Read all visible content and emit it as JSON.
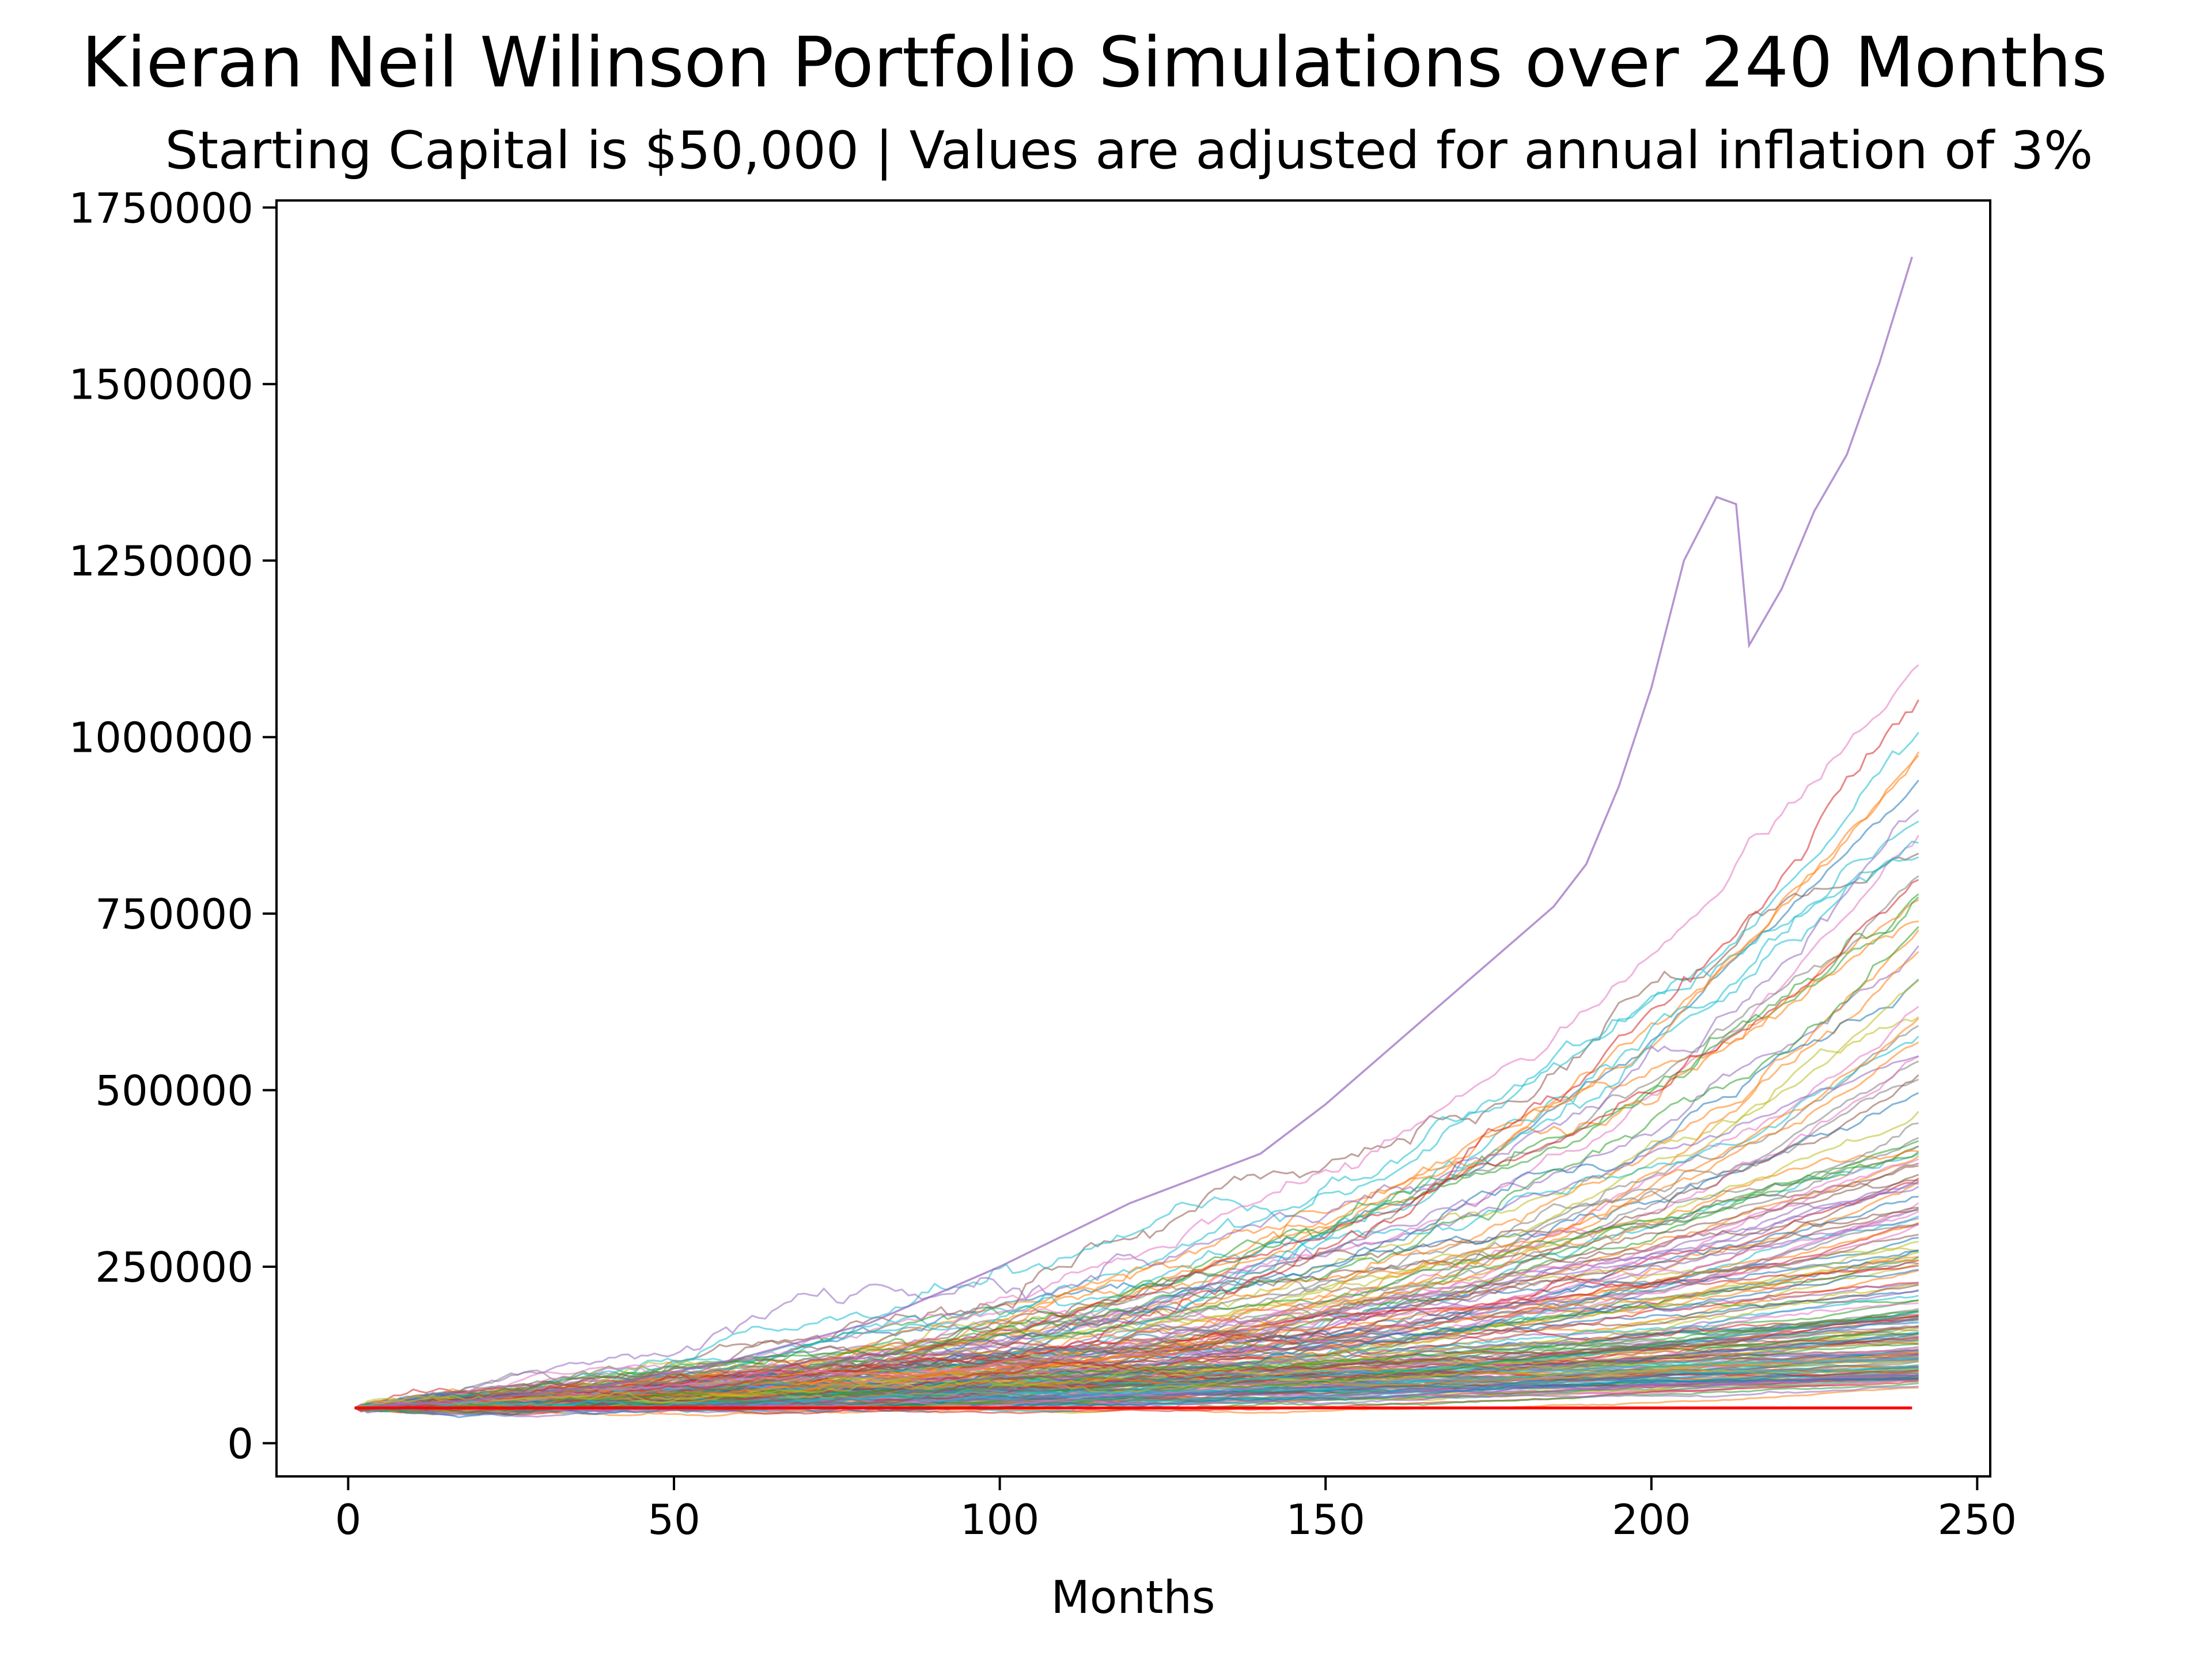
{
  "chart_data": {
    "type": "line",
    "title": "Kieran Neil Wilinson Portfolio Simulations over 240 Months",
    "subtitle": "Starting Capital is $50,000 | Values are adjusted for annual inflation of 3%",
    "xlabel": "Months",
    "ylabel": "",
    "xlim": [
      -11,
      252
    ],
    "ylim": [
      -47000,
      1760000
    ],
    "xticks": [
      0,
      50,
      100,
      150,
      200,
      250
    ],
    "xtick_labels": [
      "0",
      "50",
      "100",
      "150",
      "200",
      "250"
    ],
    "yticks": [
      0,
      250000,
      500000,
      750000,
      1000000,
      1250000,
      1500000,
      1750000
    ],
    "ytick_labels": [
      "0",
      "250000",
      "500000",
      "750000",
      "1000000",
      "1250000",
      "1500000",
      "1750000"
    ],
    "grid": false,
    "legend": "none",
    "months": 241,
    "starting_capital": 50000,
    "simulation_count": 200,
    "simulation_end_range": [
      95000,
      1680000
    ],
    "series_colors": [
      "#1f77b4",
      "#ff7f0e",
      "#2ca02c",
      "#d62728",
      "#9467bd",
      "#8c564b",
      "#e377c2",
      "#7f7f7f",
      "#bcbd22",
      "#17becf"
    ],
    "series": [
      {
        "role": "top-path",
        "color": "#9467bd",
        "x": [
          1,
          20,
          40,
          60,
          80,
          100,
          120,
          140,
          150,
          160,
          170,
          180,
          185,
          190,
          195,
          200,
          205,
          210,
          213,
          215,
          220,
          225,
          230,
          235,
          240
        ],
        "y": [
          50000,
          62000,
          82000,
          120000,
          170000,
          250000,
          340000,
          410000,
          480000,
          560000,
          640000,
          720000,
          760000,
          820000,
          930000,
          1070000,
          1250000,
          1340000,
          1330000,
          1130000,
          1210000,
          1320000,
          1400000,
          1530000,
          1680000
        ]
      },
      {
        "role": "baseline",
        "color": "#ff0000",
        "x": [
          1,
          240
        ],
        "y": [
          50000,
          50000
        ]
      }
    ]
  }
}
